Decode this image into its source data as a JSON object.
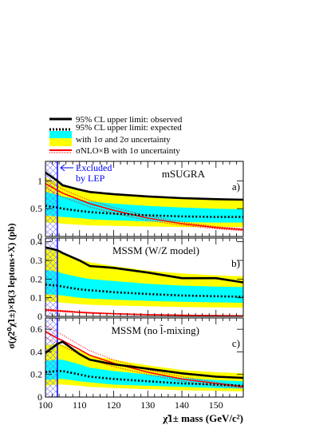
{
  "legend": {
    "items": [
      {
        "label": "95% CL upper limit: observed",
        "style": "solid-black"
      },
      {
        "label": "95% CL upper limit: expected",
        "style": "dotted-black"
      },
      {
        "label": "with 1σ and 2σ uncertainty",
        "style": "bands"
      },
      {
        "label": "σNLO×B with 1σ uncertainty",
        "style": "red"
      }
    ]
  },
  "colors": {
    "band1": "#00ffff",
    "band2": "#ffff00",
    "theory": "#ff0000",
    "excluded": "#0000ff",
    "observed": "#000000"
  },
  "excluded": {
    "text1": "Excluded",
    "text2": "by LEP",
    "x_max": 103.5
  },
  "axes": {
    "xlabel": "χ̃1± mass (GeV/c²)",
    "ylabel": "σ(χ̃2⁰χ̃1±)×B(3 leptons+X) (pb)",
    "xlim": [
      100,
      158
    ],
    "xticks": [
      "100",
      "110",
      "120",
      "130",
      "140",
      "150"
    ]
  },
  "chart_data": [
    {
      "type": "line",
      "title": "mSUGRA",
      "panel_label": "a)",
      "ylim": [
        0,
        1.35
      ],
      "yticks": [
        "0",
        "0.5",
        "1"
      ],
      "x": [
        100,
        103.5,
        105,
        110,
        113,
        120,
        130,
        140,
        150,
        158
      ],
      "series": [
        {
          "name": "95% CL upper limit: observed",
          "role": "observed",
          "values": [
            1.15,
            1.0,
            0.92,
            0.84,
            0.8,
            0.76,
            0.72,
            0.69,
            0.67,
            0.66
          ]
        },
        {
          "name": "95% CL upper limit: expected",
          "role": "expected",
          "values": [
            0.55,
            0.52,
            0.5,
            0.46,
            0.44,
            0.41,
            0.38,
            0.36,
            0.35,
            0.35
          ]
        },
        {
          "role": "band2_high",
          "values": [
            1.05,
            0.98,
            0.93,
            0.86,
            0.82,
            0.77,
            0.72,
            0.69,
            0.67,
            0.66
          ]
        },
        {
          "role": "band1_high",
          "values": [
            0.8,
            0.75,
            0.72,
            0.66,
            0.63,
            0.59,
            0.55,
            0.52,
            0.5,
            0.49
          ]
        },
        {
          "role": "band1_low",
          "values": [
            0.38,
            0.36,
            0.35,
            0.33,
            0.31,
            0.29,
            0.27,
            0.26,
            0.25,
            0.25
          ]
        },
        {
          "role": "band2_low",
          "values": [
            0.25,
            0.24,
            0.23,
            0.21,
            0.2,
            0.19,
            0.18,
            0.17,
            0.17,
            0.17
          ]
        },
        {
          "name": "σNLO×B with 1σ uncertainty",
          "role": "theory",
          "values": [
            0.95,
            0.83,
            0.78,
            0.66,
            0.59,
            0.47,
            0.33,
            0.23,
            0.16,
            0.12
          ]
        },
        {
          "role": "theory_up",
          "values": [
            1.03,
            0.9,
            0.85,
            0.72,
            0.65,
            0.52,
            0.37,
            0.26,
            0.18,
            0.14
          ]
        },
        {
          "role": "theory_dn",
          "values": [
            0.87,
            0.76,
            0.71,
            0.6,
            0.53,
            0.42,
            0.29,
            0.2,
            0.14,
            0.1
          ]
        }
      ]
    },
    {
      "type": "line",
      "title": "MSSM (W/Z model)",
      "panel_label": "b)",
      "ylim": [
        0,
        0.42
      ],
      "yticks": [
        "0",
        "0.1",
        "0.2",
        "0.3",
        "0.4"
      ],
      "x": [
        100,
        103.5,
        105,
        110,
        113,
        120,
        130,
        140,
        150,
        158
      ],
      "series": [
        {
          "name": "95% CL upper limit: observed",
          "role": "observed",
          "values": [
            0.37,
            0.355,
            0.34,
            0.3,
            0.27,
            0.26,
            0.235,
            0.205,
            0.205,
            0.182
          ]
        },
        {
          "name": "95% CL upper limit: expected",
          "role": "expected",
          "values": [
            0.17,
            0.165,
            0.16,
            0.145,
            0.14,
            0.13,
            0.12,
            0.112,
            0.108,
            0.105
          ]
        },
        {
          "role": "band2_high",
          "values": [
            0.36,
            0.35,
            0.34,
            0.305,
            0.29,
            0.27,
            0.245,
            0.23,
            0.22,
            0.215
          ]
        },
        {
          "role": "band1_high",
          "values": [
            0.25,
            0.24,
            0.23,
            0.21,
            0.2,
            0.19,
            0.175,
            0.165,
            0.16,
            0.157
          ]
        },
        {
          "role": "band1_low",
          "values": [
            0.12,
            0.115,
            0.112,
            0.1,
            0.095,
            0.09,
            0.083,
            0.078,
            0.075,
            0.073
          ]
        },
        {
          "role": "band2_low",
          "values": [
            0.08,
            0.076,
            0.073,
            0.066,
            0.062,
            0.058,
            0.054,
            0.05,
            0.048,
            0.047
          ]
        },
        {
          "name": "σNLO×B with 1σ uncertainty",
          "role": "theory",
          "values": [
            0.035,
            0.03,
            0.028,
            0.022,
            0.019,
            0.014,
            0.009,
            0.006,
            0.004,
            0.003
          ]
        },
        {
          "role": "theory_up",
          "values": [
            0.04,
            0.034,
            0.032,
            0.025,
            0.022,
            0.016,
            0.011,
            0.007,
            0.005,
            0.004
          ]
        },
        {
          "role": "theory_dn",
          "values": [
            0.03,
            0.026,
            0.024,
            0.019,
            0.016,
            0.012,
            0.008,
            0.005,
            0.003,
            0.002
          ]
        }
      ]
    },
    {
      "type": "line",
      "title": "MSSM (no l̃-mixing)",
      "panel_label": "c)",
      "ylim": [
        0,
        0.7
      ],
      "yticks": [
        "0",
        "0.2",
        "0.4",
        "0.6"
      ],
      "x": [
        100,
        103.5,
        105,
        110,
        113,
        120,
        130,
        140,
        150,
        158
      ],
      "series": [
        {
          "name": "95% CL upper limit: observed",
          "role": "observed",
          "values": [
            0.39,
            0.47,
            0.49,
            0.38,
            0.33,
            0.29,
            0.25,
            0.21,
            0.18,
            0.17
          ]
        },
        {
          "name": "95% CL upper limit: expected",
          "role": "expected",
          "values": [
            0.22,
            0.23,
            0.23,
            0.2,
            0.18,
            0.16,
            0.14,
            0.12,
            0.11,
            0.1
          ]
        },
        {
          "role": "band2_high",
          "values": [
            0.46,
            0.47,
            0.46,
            0.41,
            0.37,
            0.33,
            0.28,
            0.24,
            0.22,
            0.21
          ]
        },
        {
          "role": "band1_high",
          "values": [
            0.32,
            0.33,
            0.33,
            0.29,
            0.26,
            0.23,
            0.2,
            0.17,
            0.15,
            0.14
          ]
        },
        {
          "role": "band1_low",
          "values": [
            0.15,
            0.16,
            0.16,
            0.14,
            0.13,
            0.11,
            0.1,
            0.09,
            0.08,
            0.075
          ]
        },
        {
          "role": "band2_low",
          "values": [
            0.1,
            0.11,
            0.11,
            0.1,
            0.09,
            0.08,
            0.07,
            0.06,
            0.055,
            0.05
          ]
        },
        {
          "name": "σNLO×B with 1σ uncertainty",
          "role": "theory",
          "values": [
            0.58,
            0.52,
            0.5,
            0.42,
            0.37,
            0.3,
            0.22,
            0.16,
            0.12,
            0.09
          ]
        },
        {
          "role": "theory_up",
          "values": [
            0.64,
            0.57,
            0.55,
            0.46,
            0.41,
            0.33,
            0.24,
            0.18,
            0.13,
            0.1
          ]
        },
        {
          "role": "theory_dn",
          "values": [
            0.53,
            0.47,
            0.45,
            0.38,
            0.33,
            0.27,
            0.2,
            0.14,
            0.1,
            0.08
          ]
        }
      ]
    }
  ]
}
